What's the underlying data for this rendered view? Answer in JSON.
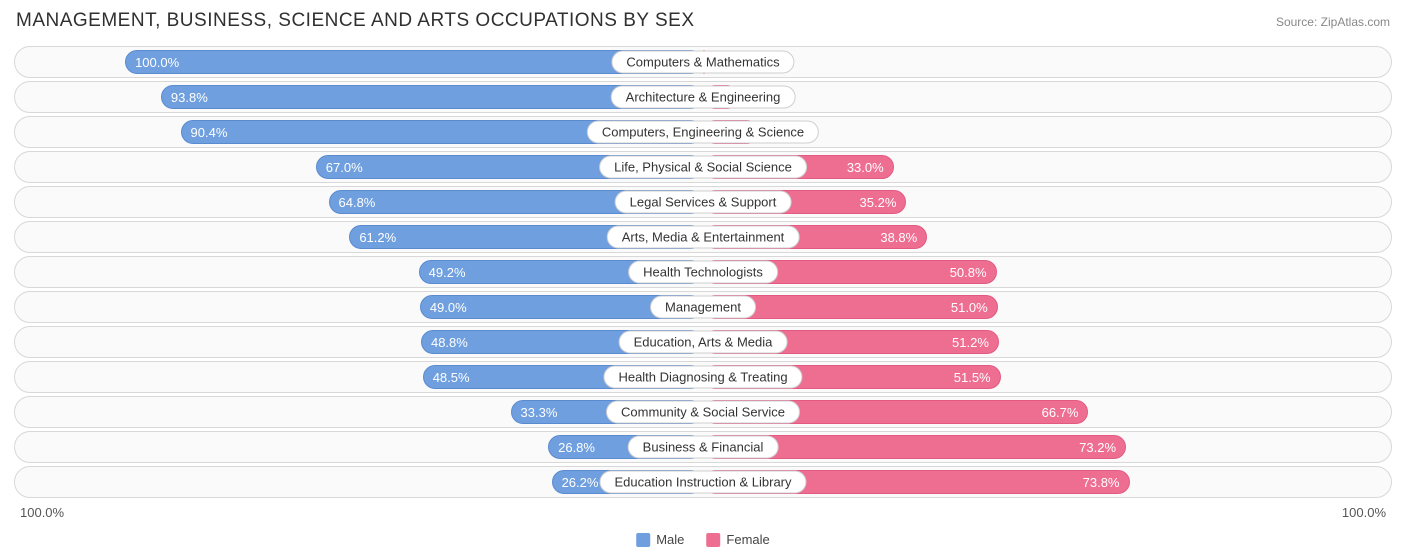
{
  "title": "MANAGEMENT, BUSINESS, SCIENCE AND ARTS OCCUPATIONS BY SEX",
  "source": "Source: ZipAtlas.com",
  "axis": {
    "left": "100.0%",
    "right": "100.0%"
  },
  "legend": {
    "male": {
      "label": "Male",
      "color": "#6f9fde"
    },
    "female": {
      "label": "Female",
      "color": "#ee6e92"
    }
  },
  "colors": {
    "male_fill": "#6f9fde",
    "female_fill": "#ee6e92",
    "row_border": "#d8d8d8",
    "row_bg": "#fafafa",
    "label_border": "#cfcfcf",
    "text": "#444444"
  },
  "chart": {
    "type": "diverging-bar",
    "value_suffix": "%",
    "label_inside_threshold": 15,
    "rows": [
      {
        "category": "Computers & Mathematics",
        "male": 100.0,
        "female": 0.0
      },
      {
        "category": "Architecture & Engineering",
        "male": 93.8,
        "female": 6.2
      },
      {
        "category": "Computers, Engineering & Science",
        "male": 90.4,
        "female": 9.7
      },
      {
        "category": "Life, Physical & Social Science",
        "male": 67.0,
        "female": 33.0
      },
      {
        "category": "Legal Services & Support",
        "male": 64.8,
        "female": 35.2
      },
      {
        "category": "Arts, Media & Entertainment",
        "male": 61.2,
        "female": 38.8
      },
      {
        "category": "Health Technologists",
        "male": 49.2,
        "female": 50.8
      },
      {
        "category": "Management",
        "male": 49.0,
        "female": 51.0
      },
      {
        "category": "Education, Arts & Media",
        "male": 48.8,
        "female": 51.2
      },
      {
        "category": "Health Diagnosing & Treating",
        "male": 48.5,
        "female": 51.5
      },
      {
        "category": "Community & Social Service",
        "male": 33.3,
        "female": 66.7
      },
      {
        "category": "Business & Financial",
        "male": 26.8,
        "female": 73.2
      },
      {
        "category": "Education Instruction & Library",
        "male": 26.2,
        "female": 73.8
      }
    ]
  }
}
